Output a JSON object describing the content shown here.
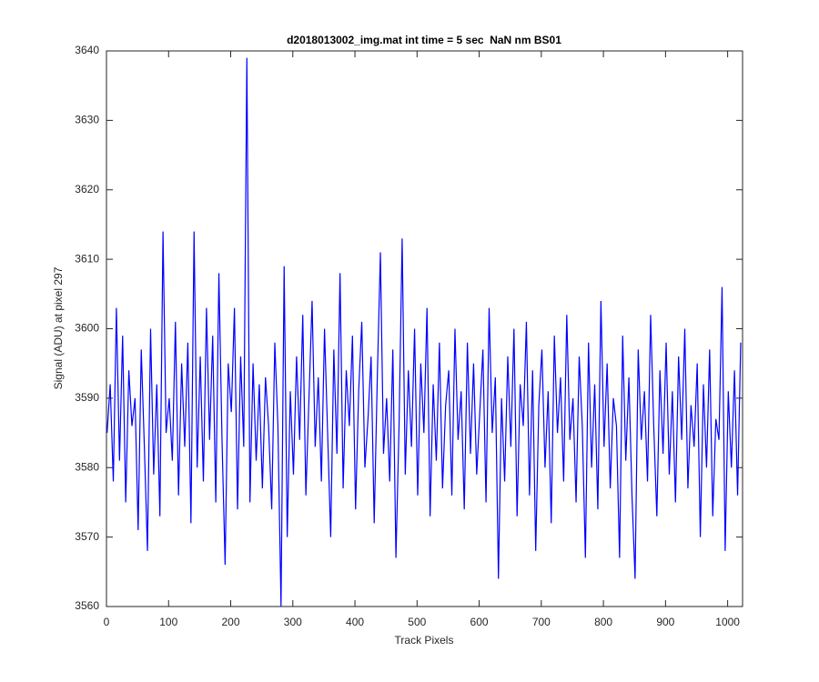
{
  "chart_data": {
    "type": "line",
    "title": "d2018013002_img.mat int time = 5 sec  NaN nm BS01",
    "x_label": "Track Pixels",
    "y_label": "Signal (ADU) at pixel 297",
    "color": "#0000ff",
    "xlim": [
      0,
      1024
    ],
    "ylim": [
      3560,
      3640
    ],
    "xticks": [
      0,
      100,
      200,
      300,
      400,
      500,
      600,
      700,
      800,
      900,
      1000
    ],
    "yticks": [
      3560,
      3570,
      3580,
      3590,
      3600,
      3610,
      3620,
      3630,
      3640
    ],
    "x": [
      1,
      6,
      11,
      16,
      21,
      26,
      31,
      36,
      41,
      46,
      51,
      56,
      61,
      66,
      71,
      76,
      81,
      86,
      91,
      96,
      101,
      106,
      111,
      116,
      121,
      126,
      131,
      136,
      141,
      146,
      151,
      156,
      161,
      166,
      171,
      176,
      181,
      186,
      191,
      196,
      201,
      206,
      211,
      216,
      221,
      226,
      231,
      236,
      241,
      246,
      251,
      256,
      261,
      266,
      271,
      276,
      281,
      286,
      291,
      296,
      301,
      306,
      311,
      316,
      321,
      326,
      331,
      336,
      341,
      346,
      351,
      356,
      361,
      366,
      371,
      376,
      381,
      386,
      391,
      396,
      401,
      406,
      411,
      416,
      421,
      426,
      431,
      436,
      441,
      446,
      451,
      456,
      461,
      466,
      471,
      476,
      481,
      486,
      491,
      496,
      501,
      506,
      511,
      516,
      521,
      526,
      531,
      536,
      541,
      546,
      551,
      556,
      561,
      566,
      571,
      576,
      581,
      586,
      591,
      596,
      601,
      606,
      611,
      616,
      621,
      626,
      631,
      636,
      641,
      646,
      651,
      656,
      661,
      666,
      671,
      676,
      681,
      686,
      691,
      696,
      701,
      706,
      711,
      716,
      721,
      726,
      731,
      736,
      741,
      746,
      751,
      756,
      761,
      766,
      771,
      776,
      781,
      786,
      791,
      796,
      801,
      806,
      811,
      816,
      821,
      826,
      831,
      836,
      841,
      846,
      851,
      856,
      861,
      866,
      871,
      876,
      881,
      886,
      891,
      896,
      901,
      906,
      911,
      916,
      921,
      926,
      931,
      936,
      941,
      946,
      951,
      956,
      961,
      966,
      971,
      976,
      981,
      986,
      991,
      996,
      1001,
      1006,
      1011,
      1016,
      1021
    ],
    "values": [
      3585,
      3592,
      3578,
      3603,
      3581,
      3599,
      3575,
      3594,
      3586,
      3590,
      3571,
      3597,
      3583,
      3568,
      3600,
      3579,
      3592,
      3573,
      3614,
      3585,
      3590,
      3581,
      3601,
      3576,
      3595,
      3583,
      3598,
      3572,
      3614,
      3580,
      3596,
      3578,
      3603,
      3584,
      3599,
      3575,
      3608,
      3584,
      3566,
      3595,
      3588,
      3603,
      3574,
      3596,
      3583,
      3639,
      3575,
      3595,
      3581,
      3592,
      3577,
      3593,
      3586,
      3574,
      3598,
      3586,
      3560,
      3609,
      3570,
      3591,
      3579,
      3596,
      3584,
      3602,
      3576,
      3590,
      3604,
      3583,
      3593,
      3578,
      3600,
      3585,
      3570,
      3597,
      3582,
      3608,
      3577,
      3594,
      3586,
      3599,
      3574,
      3591,
      3601,
      3580,
      3587,
      3596,
      3572,
      3593,
      3611,
      3582,
      3590,
      3578,
      3597,
      3567,
      3586,
      3613,
      3579,
      3594,
      3583,
      3600,
      3576,
      3595,
      3585,
      3603,
      3573,
      3592,
      3581,
      3598,
      3577,
      3589,
      3594,
      3576,
      3600,
      3584,
      3591,
      3574,
      3598,
      3582,
      3595,
      3579,
      3588,
      3597,
      3575,
      3603,
      3585,
      3593,
      3564,
      3590,
      3578,
      3596,
      3583,
      3600,
      3573,
      3592,
      3586,
      3601,
      3576,
      3594,
      3568,
      3589,
      3597,
      3580,
      3591,
      3572,
      3599,
      3585,
      3593,
      3578,
      3602,
      3584,
      3590,
      3575,
      3596,
      3586,
      3567,
      3598,
      3580,
      3592,
      3574,
      3604,
      3583,
      3595,
      3577,
      3590,
      3586,
      3567,
      3599,
      3581,
      3593,
      3576,
      3564,
      3597,
      3584,
      3591,
      3578,
      3602,
      3586,
      3573,
      3594,
      3582,
      3598,
      3579,
      3591,
      3575,
      3596,
      3584,
      3600,
      3577,
      3589,
      3583,
      3595,
      3570,
      3592,
      3580,
      3597,
      3573,
      3587,
      3584,
      3606,
      3568,
      3591,
      3580,
      3594,
      3576,
      3598
    ]
  }
}
